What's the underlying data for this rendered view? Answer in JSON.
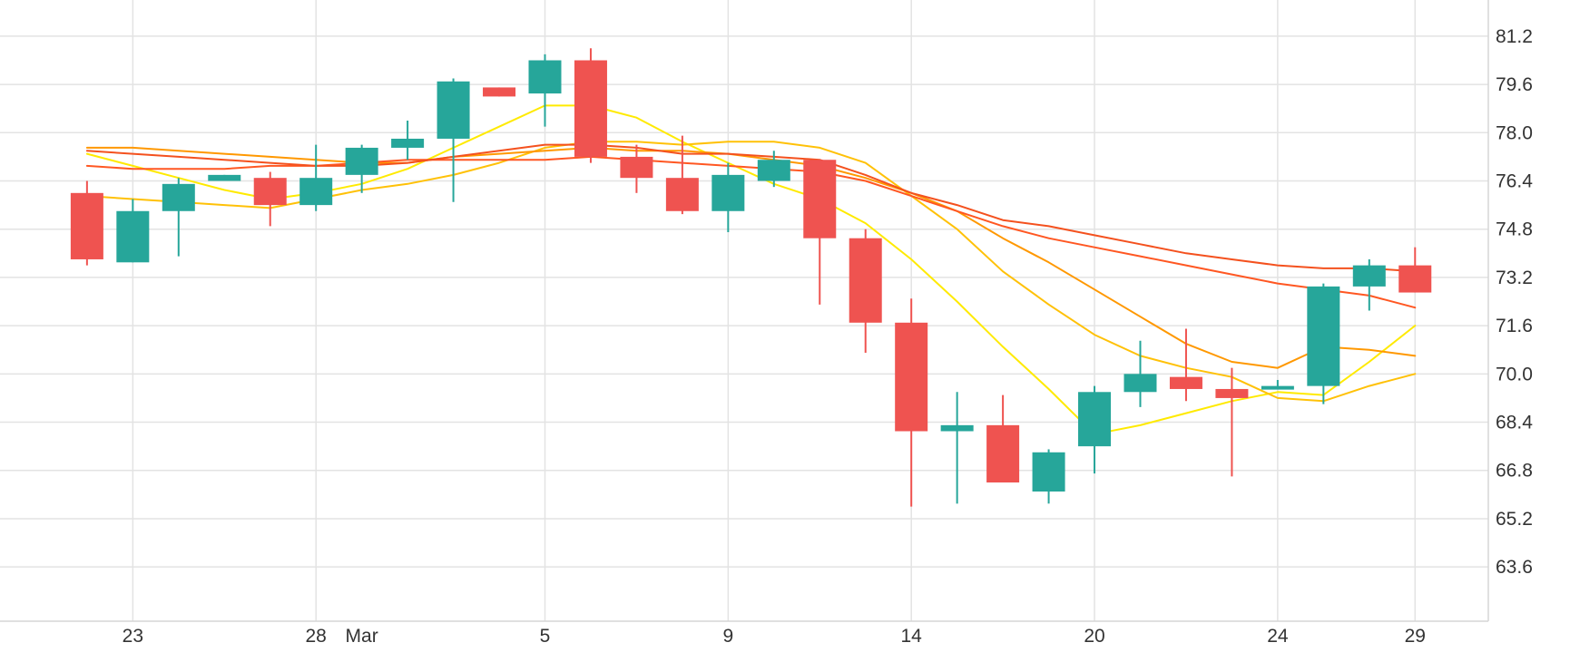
{
  "chart_data": {
    "type": "candlestick",
    "title": "",
    "xlabel": "",
    "ylabel": "",
    "ylim": [
      61.8,
      82.4
    ],
    "grid": true,
    "y_ticks": [
      63.6,
      65.2,
      66.8,
      68.4,
      70.0,
      71.6,
      73.2,
      74.8,
      76.4,
      78.0,
      79.6,
      81.2
    ],
    "y_tick_labels": [
      "63.6",
      "65.2",
      "66.8",
      "68.4",
      "70.0",
      "71.6",
      "73.2",
      "74.8",
      "76.4",
      "78.0",
      "79.6",
      "81.2"
    ],
    "x_ticks": [
      {
        "label": "23",
        "x": 1
      },
      {
        "label": "28",
        "x": 5
      },
      {
        "label": "Mar",
        "x": 6
      },
      {
        "label": "5",
        "x": 10
      },
      {
        "label": "9",
        "x": 14
      },
      {
        "label": "14",
        "x": 18
      },
      {
        "label": "20",
        "x": 22
      },
      {
        "label": "24",
        "x": 26
      },
      {
        "label": "29",
        "x": 29
      }
    ],
    "x_range": [
      -1.9,
      30.6
    ],
    "colors": {
      "up": "#26a69a",
      "down": "#ef5350",
      "ma_lines": [
        "#ffea00",
        "#ffc107",
        "#ff9800",
        "#ff5722",
        "#f4511e"
      ]
    },
    "candles": [
      {
        "x": 0,
        "open": 76.0,
        "high": 76.4,
        "low": 73.6,
        "close": 73.8
      },
      {
        "x": 1,
        "open": 73.7,
        "high": 75.8,
        "low": 73.7,
        "close": 75.4
      },
      {
        "x": 2,
        "open": 75.4,
        "high": 76.5,
        "low": 73.9,
        "close": 76.3
      },
      {
        "x": 3,
        "open": 76.4,
        "high": 76.6,
        "low": 76.4,
        "close": 76.6
      },
      {
        "x": 4,
        "open": 76.5,
        "high": 76.7,
        "low": 74.9,
        "close": 75.6
      },
      {
        "x": 5,
        "open": 75.6,
        "high": 77.6,
        "low": 75.4,
        "close": 76.5
      },
      {
        "x": 6,
        "open": 76.6,
        "high": 77.6,
        "low": 76.0,
        "close": 77.5
      },
      {
        "x": 7,
        "open": 77.5,
        "high": 78.4,
        "low": 77.1,
        "close": 77.8
      },
      {
        "x": 8,
        "open": 77.8,
        "high": 79.8,
        "low": 75.7,
        "close": 79.7
      },
      {
        "x": 9,
        "open": 79.5,
        "high": 79.5,
        "low": 79.2,
        "close": 79.2
      },
      {
        "x": 10,
        "open": 79.3,
        "high": 80.6,
        "low": 78.2,
        "close": 80.4
      },
      {
        "x": 11,
        "open": 80.4,
        "high": 80.8,
        "low": 77.0,
        "close": 77.2
      },
      {
        "x": 12,
        "open": 77.2,
        "high": 77.6,
        "low": 76.0,
        "close": 76.5
      },
      {
        "x": 13,
        "open": 76.5,
        "high": 77.9,
        "low": 75.3,
        "close": 75.4
      },
      {
        "x": 14,
        "open": 75.4,
        "high": 77.0,
        "low": 74.7,
        "close": 76.6
      },
      {
        "x": 15,
        "open": 76.4,
        "high": 77.4,
        "low": 76.2,
        "close": 77.1
      },
      {
        "x": 16,
        "open": 77.1,
        "high": 77.1,
        "low": 72.3,
        "close": 74.5
      },
      {
        "x": 17,
        "open": 74.5,
        "high": 74.8,
        "low": 70.7,
        "close": 71.7
      },
      {
        "x": 18,
        "open": 71.7,
        "high": 72.5,
        "low": 65.6,
        "close": 68.1
      },
      {
        "x": 19,
        "open": 68.1,
        "high": 69.4,
        "low": 65.7,
        "close": 68.3
      },
      {
        "x": 20,
        "open": 68.3,
        "high": 69.3,
        "low": 66.4,
        "close": 66.4
      },
      {
        "x": 21,
        "open": 66.1,
        "high": 67.5,
        "low": 65.7,
        "close": 67.4
      },
      {
        "x": 22,
        "open": 67.6,
        "high": 69.6,
        "low": 66.7,
        "close": 69.4
      },
      {
        "x": 23,
        "open": 69.4,
        "high": 71.1,
        "low": 68.9,
        "close": 70.0
      },
      {
        "x": 24,
        "open": 69.9,
        "high": 71.5,
        "low": 69.1,
        "close": 69.5
      },
      {
        "x": 25,
        "open": 69.5,
        "high": 70.2,
        "low": 66.6,
        "close": 69.2
      },
      {
        "x": 26,
        "open": 69.5,
        "high": 69.8,
        "low": 69.5,
        "close": 69.6
      },
      {
        "x": 27,
        "open": 69.6,
        "high": 73.0,
        "low": 69.0,
        "close": 72.9
      },
      {
        "x": 28,
        "open": 72.9,
        "high": 73.8,
        "low": 72.1,
        "close": 73.6
      },
      {
        "x": 29,
        "open": 73.6,
        "high": 74.2,
        "low": 72.7,
        "close": 72.7
      }
    ],
    "series": [
      {
        "values": [
          [
            0,
            77.3
          ],
          [
            1,
            76.9
          ],
          [
            2,
            76.5
          ],
          [
            3,
            76.1
          ],
          [
            4,
            75.8
          ],
          [
            5,
            76.0
          ],
          [
            6,
            76.3
          ],
          [
            7,
            76.8
          ],
          [
            8,
            77.5
          ],
          [
            9,
            78.2
          ],
          [
            10,
            78.9
          ],
          [
            11,
            78.9
          ],
          [
            12,
            78.5
          ],
          [
            13,
            77.7
          ],
          [
            14,
            77.0
          ],
          [
            15,
            76.3
          ],
          [
            16,
            75.8
          ],
          [
            17,
            75.0
          ],
          [
            18,
            73.8
          ],
          [
            19,
            72.4
          ],
          [
            20,
            70.9
          ],
          [
            21,
            69.5
          ],
          [
            22,
            68.0
          ],
          [
            23,
            68.3
          ],
          [
            24,
            68.7
          ],
          [
            25,
            69.1
          ],
          [
            26,
            69.4
          ],
          [
            27,
            69.3
          ],
          [
            28,
            70.4
          ],
          [
            29,
            71.6
          ]
        ]
      },
      {
        "values": [
          [
            0,
            75.9
          ],
          [
            1,
            75.8
          ],
          [
            2,
            75.7
          ],
          [
            3,
            75.6
          ],
          [
            4,
            75.5
          ],
          [
            5,
            75.8
          ],
          [
            6,
            76.1
          ],
          [
            7,
            76.3
          ],
          [
            8,
            76.6
          ],
          [
            9,
            77.0
          ],
          [
            10,
            77.5
          ],
          [
            11,
            77.7
          ],
          [
            12,
            77.7
          ],
          [
            13,
            77.6
          ],
          [
            14,
            77.7
          ],
          [
            15,
            77.7
          ],
          [
            16,
            77.5
          ],
          [
            17,
            77.0
          ],
          [
            18,
            75.9
          ],
          [
            19,
            74.8
          ],
          [
            20,
            73.4
          ],
          [
            21,
            72.3
          ],
          [
            22,
            71.3
          ],
          [
            23,
            70.6
          ],
          [
            24,
            70.2
          ],
          [
            25,
            69.9
          ],
          [
            26,
            69.2
          ],
          [
            27,
            69.1
          ],
          [
            28,
            69.6
          ],
          [
            29,
            70.0
          ]
        ]
      },
      {
        "values": [
          [
            0,
            77.5
          ],
          [
            1,
            77.5
          ],
          [
            2,
            77.4
          ],
          [
            3,
            77.3
          ],
          [
            4,
            77.2
          ],
          [
            5,
            77.1
          ],
          [
            6,
            77.0
          ],
          [
            7,
            77.0
          ],
          [
            8,
            77.2
          ],
          [
            9,
            77.3
          ],
          [
            10,
            77.4
          ],
          [
            11,
            77.5
          ],
          [
            12,
            77.4
          ],
          [
            13,
            77.4
          ],
          [
            14,
            77.3
          ],
          [
            15,
            77.1
          ],
          [
            16,
            76.9
          ],
          [
            17,
            76.5
          ],
          [
            18,
            76.0
          ],
          [
            19,
            75.4
          ],
          [
            20,
            74.5
          ],
          [
            21,
            73.7
          ],
          [
            22,
            72.8
          ],
          [
            23,
            71.9
          ],
          [
            24,
            71.0
          ],
          [
            25,
            70.4
          ],
          [
            26,
            70.2
          ],
          [
            27,
            70.9
          ],
          [
            28,
            70.8
          ],
          [
            29,
            70.6
          ]
        ]
      },
      {
        "values": [
          [
            0,
            76.9
          ],
          [
            1,
            76.8
          ],
          [
            2,
            76.8
          ],
          [
            3,
            76.8
          ],
          [
            4,
            76.9
          ],
          [
            5,
            76.9
          ],
          [
            6,
            77.0
          ],
          [
            7,
            77.1
          ],
          [
            8,
            77.1
          ],
          [
            9,
            77.1
          ],
          [
            10,
            77.1
          ],
          [
            11,
            77.2
          ],
          [
            12,
            77.1
          ],
          [
            13,
            77.0
          ],
          [
            14,
            76.9
          ],
          [
            15,
            76.8
          ],
          [
            16,
            76.7
          ],
          [
            17,
            76.4
          ],
          [
            18,
            75.9
          ],
          [
            19,
            75.4
          ],
          [
            20,
            74.9
          ],
          [
            21,
            74.5
          ],
          [
            22,
            74.2
          ],
          [
            23,
            73.9
          ],
          [
            24,
            73.6
          ],
          [
            25,
            73.3
          ],
          [
            26,
            73.0
          ],
          [
            27,
            72.8
          ],
          [
            28,
            72.6
          ],
          [
            29,
            72.2
          ]
        ]
      },
      {
        "values": [
          [
            0,
            77.4
          ],
          [
            1,
            77.3
          ],
          [
            2,
            77.2
          ],
          [
            3,
            77.1
          ],
          [
            4,
            77.0
          ],
          [
            5,
            76.9
          ],
          [
            6,
            76.9
          ],
          [
            7,
            77.0
          ],
          [
            8,
            77.2
          ],
          [
            9,
            77.4
          ],
          [
            10,
            77.6
          ],
          [
            11,
            77.6
          ],
          [
            12,
            77.5
          ],
          [
            13,
            77.3
          ],
          [
            14,
            77.3
          ],
          [
            15,
            77.2
          ],
          [
            16,
            77.1
          ],
          [
            17,
            76.6
          ],
          [
            18,
            76.0
          ],
          [
            19,
            75.6
          ],
          [
            20,
            75.1
          ],
          [
            21,
            74.9
          ],
          [
            22,
            74.6
          ],
          [
            23,
            74.3
          ],
          [
            24,
            74.0
          ],
          [
            25,
            73.8
          ],
          [
            26,
            73.6
          ],
          [
            27,
            73.5
          ],
          [
            28,
            73.5
          ],
          [
            29,
            73.4
          ]
        ]
      }
    ]
  }
}
